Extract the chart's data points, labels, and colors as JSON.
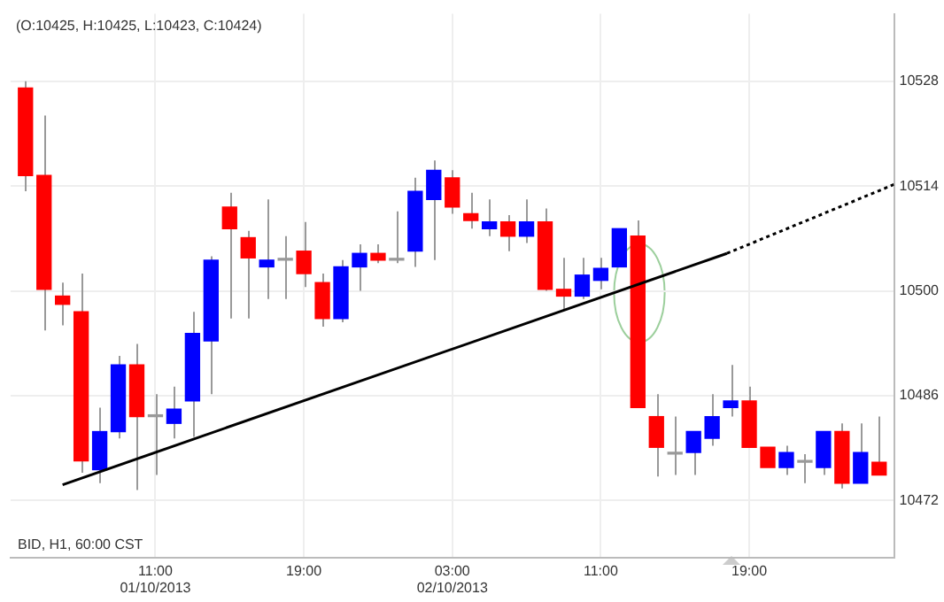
{
  "chart_data": {
    "type": "candlestick",
    "title": "(O:10425, H:10425, L:10423, C:10424)",
    "annotations": [
      "BID, H1, 60:00 CST"
    ],
    "x": [
      "2013-10-01T04:00",
      "2013-10-01T05:00",
      "2013-10-01T06:00",
      "2013-10-01T07:00",
      "2013-10-01T08:00",
      "2013-10-01T09:00",
      "2013-10-01T10:00",
      "2013-10-01T11:00",
      "2013-10-01T12:00",
      "2013-10-01T13:00",
      "2013-10-01T14:00",
      "2013-10-01T15:00",
      "2013-10-01T16:00",
      "2013-10-01T17:00",
      "2013-10-01T18:00",
      "2013-10-01T19:00",
      "2013-10-01T20:00",
      "2013-10-01T21:00",
      "2013-10-01T22:00",
      "2013-10-01T23:00",
      "2013-10-02T00:00",
      "2013-10-02T01:00",
      "2013-10-02T02:00",
      "2013-10-02T03:00",
      "2013-10-02T04:00",
      "2013-10-02T05:00",
      "2013-10-02T06:00",
      "2013-10-02T07:00",
      "2013-10-02T08:00",
      "2013-10-02T09:00",
      "2013-10-02T10:00",
      "2013-10-02T11:00",
      "2013-10-02T12:00",
      "2013-10-02T13:00",
      "2013-10-02T14:00",
      "2013-10-02T15:00",
      "2013-10-02T16:00",
      "2013-10-02T17:00",
      "2013-10-02T18:00",
      "2013-10-02T19:00",
      "2013-10-02T20:00",
      "2013-10-02T21:00",
      "2013-10-02T22:00",
      "2013-10-02T23:00",
      "2013-10-03T00:00",
      "2013-10-03T01:00",
      "2013-10-03T02:00"
    ],
    "ohlc": [
      [
        10527.1,
        10528,
        10513.3,
        10515.4
      ],
      [
        10515.4,
        10523.4,
        10494.7,
        10500.2
      ],
      [
        10499.3,
        10501.1,
        10495.4,
        10498.2
      ],
      [
        10497.2,
        10502.3,
        10475.7,
        10477.3
      ],
      [
        10476.1,
        10484.4,
        10474.3,
        10481.2
      ],
      [
        10481.2,
        10491.3,
        10480.3,
        10490.1
      ],
      [
        10490.1,
        10492.9,
        10473.4,
        10483.2
      ],
      [
        10483.2,
        10486.2,
        10475.4,
        10483.2
      ],
      [
        10482.3,
        10487.2,
        10480.3,
        10484.2
      ],
      [
        10485.3,
        10497.2,
        10480.5,
        10494.3
      ],
      [
        10493.3,
        10504.6,
        10486.2,
        10504.1
      ],
      [
        10511.2,
        10513.1,
        10496.3,
        10508.3
      ],
      [
        10507.1,
        10508.0,
        10496.3,
        10504.4
      ],
      [
        10503.2,
        10512.2,
        10498.9,
        10504.1
      ],
      [
        10504.1,
        10507.3,
        10498.9,
        10504.1
      ],
      [
        10505.3,
        10509.2,
        10500.5,
        10502.3
      ],
      [
        10501.1,
        10502.3,
        10495.2,
        10496.3
      ],
      [
        10496.3,
        10504.1,
        10495.8,
        10503.2
      ],
      [
        10503.2,
        10506.2,
        10500.0,
        10505.0
      ],
      [
        10505.0,
        10506.2,
        10503.7,
        10504.1
      ],
      [
        10504.1,
        10510.6,
        10503.7,
        10504.1
      ],
      [
        10505.3,
        10515.1,
        10503.2,
        10513.3
      ],
      [
        10512.2,
        10517.4,
        10504.1,
        10516.1
      ],
      [
        10515.1,
        10516.1,
        10510.3,
        10511.2
      ],
      [
        10510.3,
        10513.1,
        10508.3,
        10509.4
      ],
      [
        10508.3,
        10512.2,
        10507.3,
        10509.2
      ],
      [
        10509.2,
        10510.1,
        10505.3,
        10507.3
      ],
      [
        10507.3,
        10512.2,
        10506.4,
        10509.2
      ],
      [
        10509.2,
        10511.0,
        10500.0,
        10500.2
      ],
      [
        10500.2,
        10504.4,
        10497.5,
        10499.3
      ],
      [
        10499.3,
        10504.4,
        10498.9,
        10502.1
      ],
      [
        10501.4,
        10504.4,
        10500.2,
        10503.0
      ],
      [
        10503.2,
        10508.3,
        10503.2,
        10508.3
      ],
      [
        10507.3,
        10509.4,
        10484.4,
        10484.4
      ],
      [
        10483.2,
        10486.2,
        10475.2,
        10479.1
      ],
      [
        10478.2,
        10483.2,
        10475.4,
        10478.2
      ],
      [
        10478.4,
        10481.2,
        10475.4,
        10481.2
      ],
      [
        10480.3,
        10486.2,
        10479.3,
        10483.2
      ],
      [
        10484.4,
        10490.1,
        10483.2,
        10485.3
      ],
      [
        10485.3,
        10487.2,
        10479.1,
        10479.1
      ],
      [
        10479.1,
        10479.1,
        10476.4,
        10476.4
      ],
      [
        10476.4,
        10479.3,
        10475.4,
        10478.4
      ],
      [
        10477.1,
        10478.2,
        10474.3,
        10477.1
      ],
      [
        10476.4,
        10481.2,
        10475.4,
        10481.2
      ],
      [
        10481.2,
        10482.3,
        10473.6,
        10474.3
      ],
      [
        10474.3,
        10482.3,
        10474.3,
        10478.4
      ],
      [
        10477.1,
        10483.2,
        10475.4,
        10475.4
      ]
    ],
    "colors": [
      "#ff0000",
      "#ff0000",
      "#ff0000",
      "#ff0000",
      "#0000ff",
      "#0000ff",
      "#ff0000",
      "#999999",
      "#0000ff",
      "#0000ff",
      "#0000ff",
      "#ff0000",
      "#ff0000",
      "#0000ff",
      "#999999",
      "#ff0000",
      "#ff0000",
      "#0000ff",
      "#0000ff",
      "#ff0000",
      "#999999",
      "#0000ff",
      "#0000ff",
      "#ff0000",
      "#ff0000",
      "#0000ff",
      "#ff0000",
      "#0000ff",
      "#ff0000",
      "#ff0000",
      "#0000ff",
      "#0000ff",
      "#0000ff",
      "#ff0000",
      "#ff0000",
      "#999999",
      "#0000ff",
      "#0000ff",
      "#0000ff",
      "#ff0000",
      "#ff0000",
      "#0000ff",
      "#999999",
      "#0000ff",
      "#ff0000",
      "#0000ff",
      "#ff0000"
    ],
    "series": [
      {
        "type": "line",
        "color": "#000000",
        "x": [
          "2013-10-01T06:00",
          "2013-10-02T17:48"
        ],
        "values": [
          10474.1,
          10505.0
        ],
        "line_style": "solid"
      },
      {
        "type": "line",
        "color": "#000000",
        "x": [
          "2013-10-02T17:48",
          "2013-10-03T02:48"
        ],
        "values": [
          10505.0,
          10514.2
        ],
        "line_style": "dotted"
      }
    ],
    "marker": "none",
    "xlim": [
      "2013-10-01T03:12",
      "2013-10-03T02:48"
    ],
    "xticks": [
      {
        "value": "2013-10-01T11:00",
        "label": "11:00\n01/10/2013"
      },
      {
        "value": "2013-10-01T19:00",
        "label": "19:00"
      },
      {
        "value": "2013-10-02T03:00",
        "label": "03:00\n02/10/2013"
      },
      {
        "value": "2013-10-02T11:00",
        "label": "11:00"
      },
      {
        "value": "2013-10-02T19:00",
        "label": "19:00"
      }
    ],
    "ylim": [
      10464.4,
      10537
    ],
    "yticks": [
      10472,
      10486,
      10500,
      10514,
      10528
    ],
    "grid": true,
    "legend": false
  }
}
